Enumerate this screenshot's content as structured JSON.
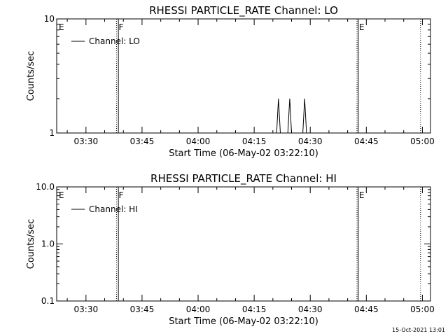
{
  "chart_data": [
    {
      "type": "line",
      "title": "RHESSI PARTICLE_RATE Channel: LO",
      "xlabel": "Start Time (06-May-02 03:22:10)",
      "ylabel": "Counts/sec",
      "yscale": "log",
      "ylim": [
        1,
        10
      ],
      "y_tick_labels": [
        "1",
        "10"
      ],
      "xlim_minutes_after_start": [
        0,
        100
      ],
      "x_tick_labels": [
        "03:30",
        "03:45",
        "04:00",
        "04:15",
        "04:30",
        "04:45",
        "05:00"
      ],
      "x_tick_times": [
        "03:30",
        "03:45",
        "04:00",
        "04:15",
        "04:30",
        "04:45",
        "05:00"
      ],
      "legend": "top-left",
      "series": [
        {
          "name": "Channel: LO",
          "x_time": [
            "04:20:30",
            "04:21:00",
            "04:21:30",
            "04:22:00",
            "04:22:30",
            "04:23:30",
            "04:24:00",
            "04:24:30",
            "04:25:00",
            "04:25:30",
            "04:27:30",
            "04:28:00",
            "04:28:30",
            "04:29:00",
            "04:29:30"
          ],
          "y": [
            1,
            1,
            2,
            1,
            1,
            1,
            1,
            2,
            1,
            1,
            1,
            1,
            2,
            1,
            1
          ]
        }
      ],
      "markers": [
        {
          "label": "E",
          "time": "03:22:10",
          "style": "none"
        },
        {
          "label": "F",
          "time": "03:38:10",
          "style": "dotted"
        },
        {
          "label": "",
          "time": "03:38:40",
          "style": "solid"
        },
        {
          "label": "E",
          "time": "04:42:30",
          "style": "dotted"
        },
        {
          "label": "",
          "time": "04:42:50",
          "style": "solid"
        },
        {
          "label": "",
          "time": "04:59:30",
          "style": "dotted"
        }
      ]
    },
    {
      "type": "line",
      "title": "RHESSI PARTICLE_RATE Channel: HI",
      "xlabel": "Start Time (06-May-02 03:22:10)",
      "ylabel": "Counts/sec",
      "yscale": "log",
      "ylim": [
        0.1,
        10
      ],
      "y_tick_labels": [
        "0.1",
        "1.0",
        "10.0"
      ],
      "xlim_minutes_after_start": [
        0,
        100
      ],
      "x_tick_labels": [
        "03:30",
        "03:45",
        "04:00",
        "04:15",
        "04:30",
        "04:45",
        "05:00"
      ],
      "x_tick_times": [
        "03:30",
        "03:45",
        "04:00",
        "04:15",
        "04:30",
        "04:45",
        "05:00"
      ],
      "legend": "top-left",
      "series": [
        {
          "name": "Channel: HI",
          "x_time": [],
          "y": []
        }
      ],
      "markers": [
        {
          "label": "E",
          "time": "03:22:10",
          "style": "none"
        },
        {
          "label": "F",
          "time": "03:38:10",
          "style": "dotted"
        },
        {
          "label": "",
          "time": "03:38:40",
          "style": "solid"
        },
        {
          "label": "E",
          "time": "04:42:30",
          "style": "dotted"
        },
        {
          "label": "",
          "time": "04:42:50",
          "style": "solid"
        },
        {
          "label": "",
          "time": "04:59:30",
          "style": "dotted"
        }
      ]
    }
  ],
  "footer": {
    "timestamp": "15-Oct-2021 13:01"
  }
}
